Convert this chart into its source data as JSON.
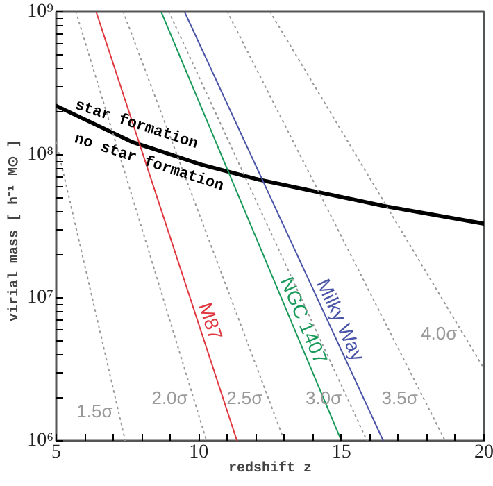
{
  "chart_data": {
    "type": "line",
    "xlabel": "redshift z",
    "ylabel": "virial mass  [ h⁻¹ M⊙ ]",
    "log": "y",
    "xlim": [
      5,
      20
    ],
    "ylim": [
      1000000,
      1000000000
    ],
    "xticks": [
      5,
      {
        "value": 6,
        "label": null
      },
      {
        "value": 7,
        "label": null
      },
      {
        "value": 8,
        "label": null
      },
      {
        "value": 9,
        "label": null
      },
      10,
      {
        "value": 11,
        "label": null
      },
      {
        "value": 12,
        "label": null
      },
      {
        "value": 13,
        "label": null
      },
      {
        "value": 14,
        "label": null
      },
      15,
      {
        "value": 16,
        "label": null
      },
      {
        "value": 17,
        "label": null
      },
      {
        "value": 18,
        "label": null
      },
      {
        "value": 19,
        "label": null
      },
      20
    ],
    "yticks": [
      {
        "value": 1000000,
        "label": "10⁶"
      },
      {
        "value": 2000000,
        "label": null
      },
      {
        "value": 3000000,
        "label": null
      },
      {
        "value": 4000000,
        "label": null
      },
      {
        "value": 5000000,
        "label": null
      },
      {
        "value": 6000000,
        "label": null
      },
      {
        "value": 7000000,
        "label": null
      },
      {
        "value": 8000000,
        "label": null
      },
      {
        "value": 9000000,
        "label": null
      },
      {
        "value": 10000000,
        "label": "10⁷"
      },
      {
        "value": 20000000,
        "label": null
      },
      {
        "value": 30000000,
        "label": null
      },
      {
        "value": 40000000,
        "label": null
      },
      {
        "value": 50000000,
        "label": null
      },
      {
        "value": 60000000,
        "label": null
      },
      {
        "value": 70000000,
        "label": null
      },
      {
        "value": 80000000,
        "label": null
      },
      {
        "value": 90000000,
        "label": null
      },
      {
        "value": 100000000,
        "label": "10⁸"
      },
      {
        "value": 200000000,
        "label": null
      },
      {
        "value": 300000000,
        "label": null
      },
      {
        "value": 400000000,
        "label": null
      },
      {
        "value": 500000000,
        "label": null
      },
      {
        "value": 600000000,
        "label": null
      },
      {
        "value": 700000000,
        "label": null
      },
      {
        "value": 800000000,
        "label": null
      },
      {
        "value": 900000000,
        "label": null
      },
      {
        "value": 1000000000,
        "label": "10⁹"
      }
    ],
    "series": [
      {
        "color": "#000000",
        "x": [
          5,
          7.66,
          10.13,
          12.11,
          16.47,
          20
        ],
        "values": [
          220000000,
          123000000,
          85000000,
          67000000,
          44000000,
          33000000
        ]
      },
      {
        "name": "M87",
        "color": "#e0383f",
        "x": [
          6.4,
          11.34
        ],
        "values": [
          1000000000,
          1000000
        ]
      },
      {
        "name": "NGC 1407",
        "color": "#1a9a5a",
        "x": [
          8.68,
          15.0
        ],
        "values": [
          1000000000,
          1000000
        ]
      },
      {
        "name": "Milky Way",
        "color": "#4a55a8",
        "x": [
          9.5,
          16.47
        ],
        "values": [
          1000000000,
          1000000
        ]
      },
      {
        "name": "1.5σ",
        "color": "#999999",
        "line_style": "dotted",
        "x": [
          5,
          7.42
        ],
        "values": [
          123000000,
          1000000
        ]
      },
      {
        "name": "2.0σ",
        "color": "#999999",
        "line_style": "dotted",
        "x": [
          5.69,
          10.27
        ],
        "values": [
          1000000000,
          1000000
        ]
      },
      {
        "name": "2.5σ",
        "color": "#999999",
        "line_style": "dotted",
        "x": [
          7.35,
          13.0
        ],
        "values": [
          1000000000,
          1000000
        ]
      },
      {
        "name": "3.0σ",
        "color": "#999999",
        "line_style": "dotted",
        "x": [
          8.95,
          15.9
        ],
        "values": [
          1000000000,
          1000000
        ]
      },
      {
        "name": "3.5σ",
        "color": "#999999",
        "line_style": "dotted",
        "x": [
          11.0,
          18.64
        ],
        "values": [
          1000000000,
          1000000
        ]
      },
      {
        "name": "4.0σ",
        "color": "#999999",
        "line_style": "dotted",
        "x": [
          12.5,
          20
        ],
        "values": [
          1000000000,
          3200000
        ]
      }
    ],
    "annotations": [
      {
        "text": "star formation",
        "x": 7.8,
        "y": 160000000
      },
      {
        "text": "no star formation",
        "x": 8.24,
        "y": 87000000
      }
    ]
  }
}
